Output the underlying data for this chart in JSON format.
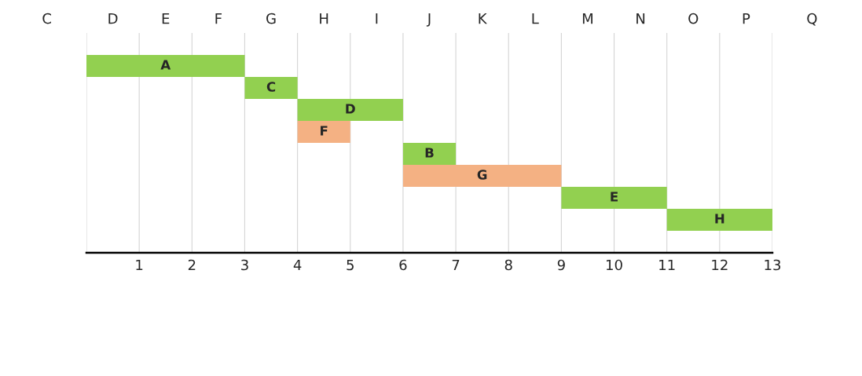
{
  "chart_data": {
    "type": "bar",
    "orientation": "horizontal",
    "categories": [
      null,
      null,
      null,
      null,
      null,
      null,
      null,
      null
    ],
    "base": [
      0,
      3,
      4,
      4,
      6,
      6,
      9,
      11
    ],
    "values": [
      3,
      1,
      2,
      1,
      1,
      3,
      2,
      2
    ],
    "value_labels": [
      "A",
      "C",
      "D",
      "F",
      "B",
      "G",
      "E",
      "H"
    ],
    "colors": [
      "#92d050",
      "#92d050",
      "#92d050",
      "#f4b183",
      "#92d050",
      "#f4b183",
      "#92d050",
      "#92d050"
    ],
    "xlim": [
      0,
      13
    ],
    "xticks": [
      {
        "value": 0,
        "label": null
      },
      1,
      2,
      3,
      4,
      5,
      6,
      7,
      8,
      9,
      10,
      11,
      12,
      13
    ],
    "annotations": [
      "C",
      "D",
      "E",
      "F",
      "G",
      "H",
      "I",
      "J",
      "K",
      "L",
      "M",
      "N",
      "O",
      "P",
      "Q"
    ],
    "grid": "x"
  }
}
